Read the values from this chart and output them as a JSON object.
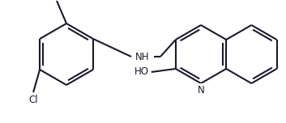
{
  "background_color": "#ffffff",
  "line_color": "#1a1a2e",
  "bond_width": 1.5,
  "figsize": [
    3.53,
    1.52
  ],
  "dpi": 100,
  "xlim": [
    0,
    353
  ],
  "ylim": [
    0,
    152
  ]
}
